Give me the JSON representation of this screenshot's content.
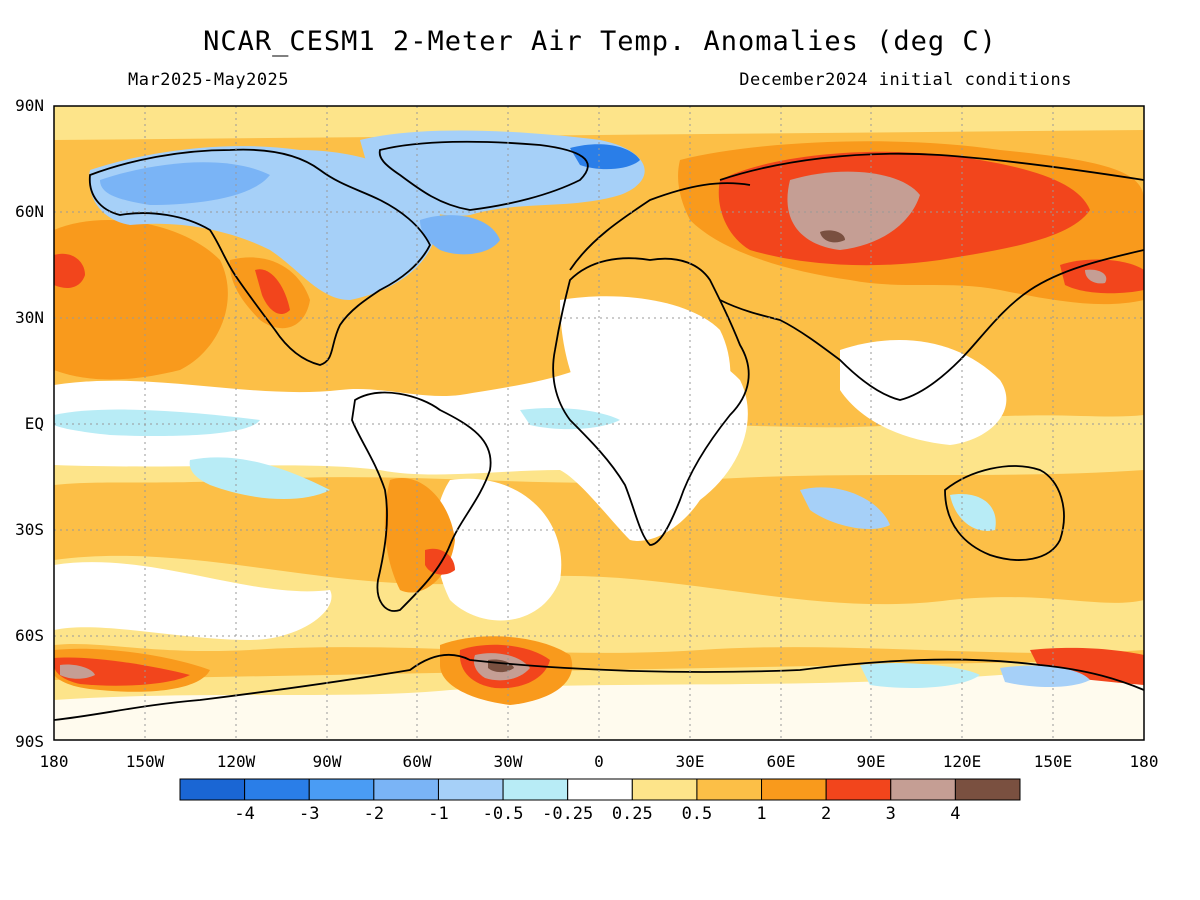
{
  "header": {
    "title": "NCAR_CESM1 2-Meter Air Temp. Anomalies (deg C)",
    "period": "Mar2025-May2025",
    "init": "December2024 initial conditions"
  },
  "axes": {
    "lat_labels": [
      "90N",
      "60N",
      "30N",
      "EQ",
      "30S",
      "60S",
      "90S"
    ],
    "lon_labels": [
      "180",
      "150W",
      "120W",
      "90W",
      "60W",
      "30W",
      "0",
      "30E",
      "60E",
      "90E",
      "120E",
      "150E",
      "180"
    ]
  },
  "colorbar": {
    "colors": [
      "#1a66d4",
      "#2a7ee8",
      "#4a9cf4",
      "#7ab4f6",
      "#a6d0f8",
      "#b8ecf6",
      "#ffffff",
      "#fde48a",
      "#fcbf47",
      "#f99a1c",
      "#f2451c",
      "#c59e94",
      "#7a5040"
    ],
    "labels": [
      "-4",
      "-3",
      "-2",
      "-1",
      "-0.5",
      "-0.25",
      "0.25",
      "0.5",
      "1",
      "2",
      "3",
      "4"
    ]
  },
  "map_data": {
    "background_class": "#fcbf47",
    "regions": [
      {
        "name": "north-pacific-warm",
        "color": "#f99a1c"
      },
      {
        "name": "north-america-cool",
        "color": "#a6d0f8"
      },
      {
        "name": "greenland-cool",
        "color": "#7ab4f6"
      },
      {
        "name": "siberia-warm",
        "color": "#f2451c"
      },
      {
        "name": "siberia-hot-core",
        "color": "#c59e94"
      },
      {
        "name": "southern-ocean-hot",
        "color": "#7a5040"
      },
      {
        "name": "tropics-neutral",
        "color": "#ffffff"
      }
    ]
  }
}
